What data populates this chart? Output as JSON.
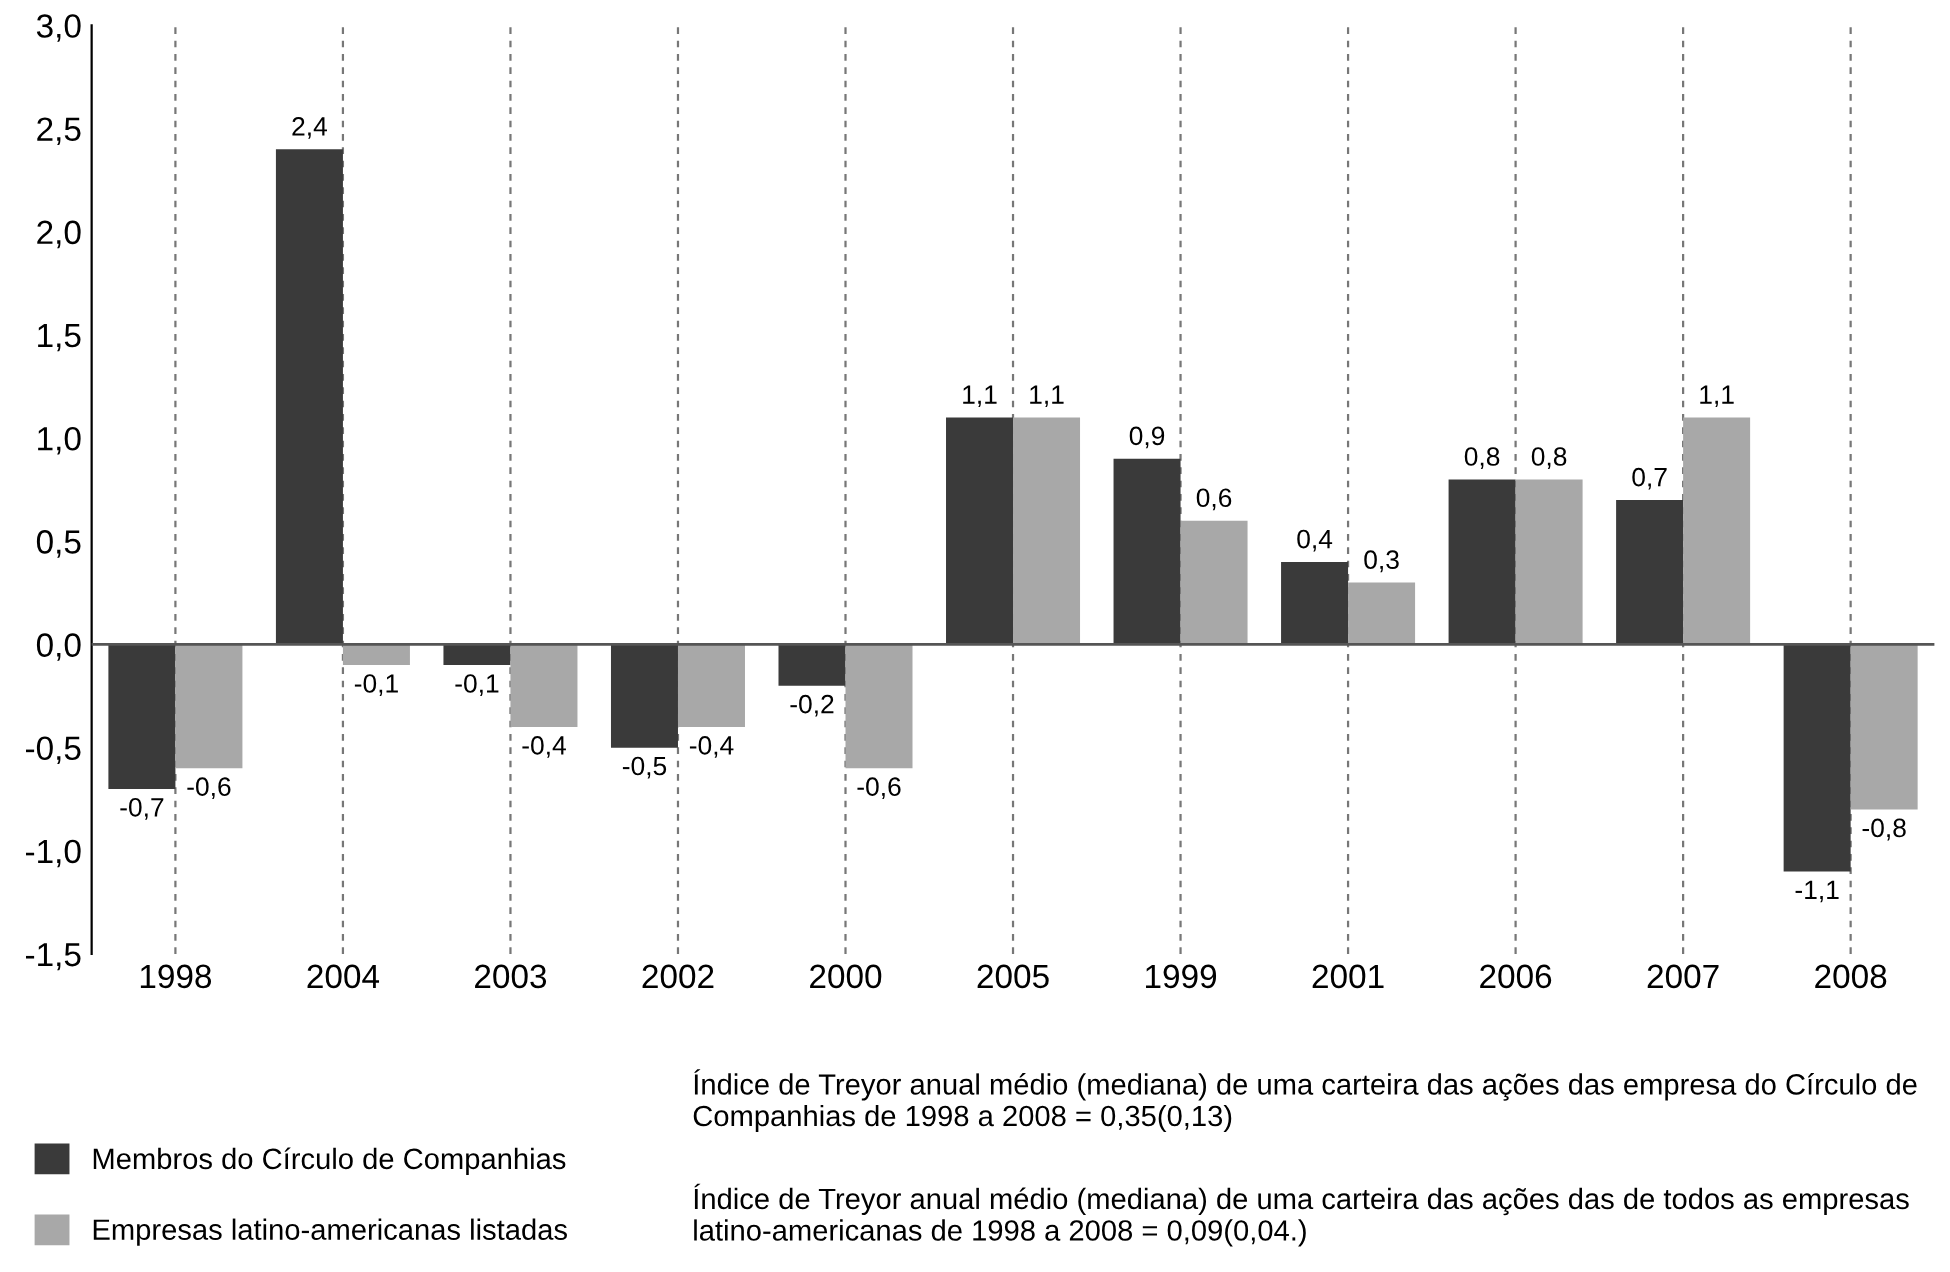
{
  "chart_data": {
    "type": "bar",
    "categories": [
      "1998",
      "2004",
      "2003",
      "2002",
      "2000",
      "2005",
      "1999",
      "2001",
      "2006",
      "2007",
      "2008"
    ],
    "series": [
      {
        "name": "Membros do Círculo de Companhias",
        "color": "#3a3a3a",
        "values": [
          -0.7,
          2.4,
          -0.1,
          -0.5,
          -0.2,
          1.1,
          0.9,
          0.4,
          0.8,
          0.7,
          -1.1
        ],
        "value_labels": [
          "-0,7",
          "2,4",
          "-0,1",
          "-0,5",
          "-0,2",
          "1,1",
          "0,9",
          "0,4",
          "0,8",
          "0,7",
          "-1,1"
        ]
      },
      {
        "name": "Empresas latino-americanas listadas",
        "color": "#a8a8a8",
        "values": [
          -0.6,
          -0.1,
          -0.4,
          -0.4,
          -0.6,
          1.1,
          0.6,
          0.3,
          0.8,
          1.1,
          -0.8
        ],
        "value_labels": [
          "-0,6",
          "-0,1",
          "-0,4",
          "-0,4",
          "-0,6",
          "1,1",
          "0,6",
          "0,3",
          "0,8",
          "1,1",
          "-0,8"
        ]
      }
    ],
    "ylim": [
      -1.5,
      3.0
    ],
    "yticks": [
      {
        "value": -1.5,
        "label": "-1,5"
      },
      {
        "value": -1.0,
        "label": "-1,0"
      },
      {
        "value": -0.5,
        "label": "-0,5"
      },
      {
        "value": 0,
        "label": "0,0"
      },
      {
        "value": 0.5,
        "label": "0,5"
      },
      {
        "value": 1.0,
        "label": "1,0"
      },
      {
        "value": 1.5,
        "label": "1,5"
      },
      {
        "value": 2.0,
        "label": "2,0"
      },
      {
        "value": 2.5,
        "label": "2,5"
      },
      {
        "value": 3.0,
        "label": "3,0"
      }
    ],
    "grid": "x",
    "legend": "bottom",
    "annotations": [
      "Índice de Treyor anual médio (mediana) de uma carteira das ações das empresa do Círculo de Companhias de 1998 a 2008 = 0,35(0,13)",
      "Índice de Treyor anual médio (mediana) de uma carteira das ações das de todos as empresas latino-americanas de 1998 a 2008 = 0,09(0,04.)"
    ]
  }
}
